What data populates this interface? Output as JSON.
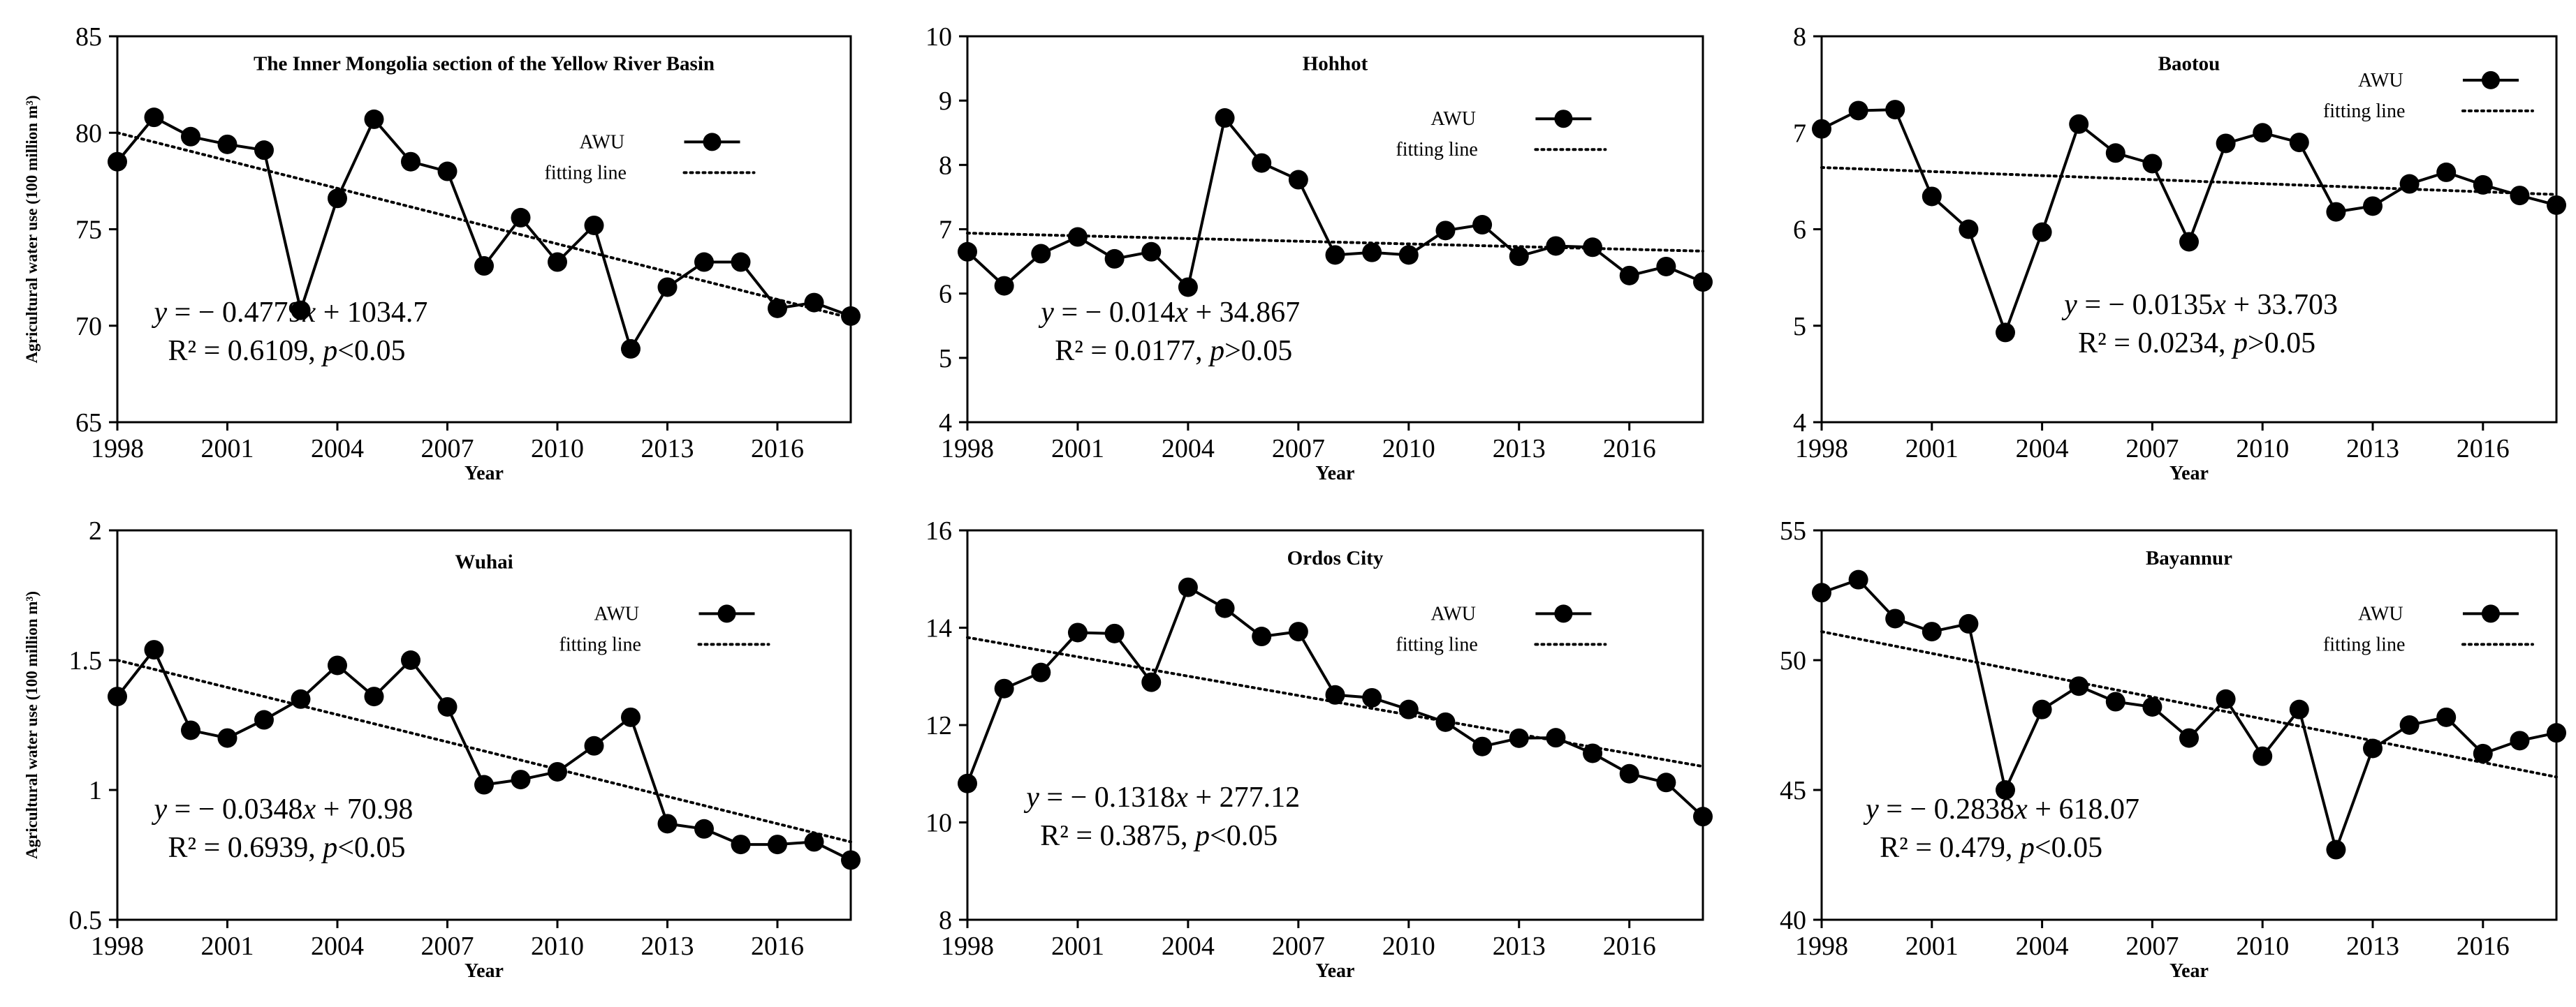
{
  "chart_data": [
    {
      "type": "line",
      "title": "The Inner Mongolia section of the Yellow River Basin",
      "xlabel": "Year",
      "ylabel": "Agricultural water use (100 million m³)",
      "xlim": [
        1998,
        2018
      ],
      "ylim": [
        65,
        85
      ],
      "xticks": [
        "1998",
        "2001",
        "2004",
        "2007",
        "2010",
        "2013",
        "2016"
      ],
      "yticks": [
        "65",
        "70",
        "75",
        "80",
        "85"
      ],
      "legend": {
        "series_label": "AWU",
        "fit_label": "fitting line"
      },
      "series": [
        {
          "name": "AWU",
          "x": [
            1998,
            1999,
            2000,
            2001,
            2002,
            2003,
            2004,
            2005,
            2006,
            2007,
            2008,
            2009,
            2010,
            2011,
            2012,
            2013,
            2014,
            2015,
            2016,
            2017,
            2018
          ],
          "values": [
            78.5,
            80.8,
            79.8,
            79.4,
            79.1,
            70.8,
            76.6,
            80.7,
            78.5,
            78.0,
            73.1,
            75.6,
            73.3,
            75.2,
            68.8,
            72.0,
            73.3,
            73.3,
            70.9,
            71.2,
            70.5
          ]
        }
      ],
      "fit": {
        "start": [
          1998,
          80.0
        ],
        "end": [
          2018,
          70.4
        ]
      },
      "equation": {
        "y_var": "y",
        "y_rest": " = − 0.4779",
        "x_var": "x",
        "x_rest": " + 1034.7",
        "r2_part": "R² = 0.6109, ",
        "p_var": "p",
        "p_rest": "<0.05"
      }
    },
    {
      "type": "line",
      "title": "Hohhot",
      "xlabel": "Year",
      "xlim": [
        1998,
        2018
      ],
      "ylim": [
        4,
        10
      ],
      "xticks": [
        "1998",
        "2001",
        "2004",
        "2007",
        "2010",
        "2013",
        "2016"
      ],
      "yticks": [
        "4",
        "5",
        "6",
        "7",
        "8",
        "9",
        "10"
      ],
      "legend": {
        "series_label": "AWU",
        "fit_label": "fitting line"
      },
      "series": [
        {
          "name": "AWU",
          "x": [
            1998,
            1999,
            2000,
            2001,
            2002,
            2003,
            2004,
            2005,
            2006,
            2007,
            2008,
            2009,
            2010,
            2011,
            2012,
            2013,
            2014,
            2015,
            2016,
            2017,
            2018
          ],
          "values": [
            6.65,
            6.12,
            6.62,
            6.88,
            6.54,
            6.65,
            6.1,
            8.73,
            8.03,
            7.77,
            6.6,
            6.64,
            6.6,
            6.98,
            7.07,
            6.58,
            6.74,
            6.72,
            6.28,
            6.42,
            6.18
          ]
        }
      ],
      "fit": {
        "start": [
          1998,
          6.94
        ],
        "end": [
          2018,
          6.66
        ]
      },
      "equation": {
        "y_var": "y",
        "y_rest": " = − 0.014",
        "x_var": "x",
        "x_rest": " + 34.867",
        "r2_part": "R² = 0.0177, ",
        "p_var": "p",
        "p_rest": ">0.05"
      }
    },
    {
      "type": "line",
      "title": "Baotou",
      "xlabel": "Year",
      "xlim": [
        1998,
        2018
      ],
      "ylim": [
        4,
        8
      ],
      "xticks": [
        "1998",
        "2001",
        "2004",
        "2007",
        "2010",
        "2013",
        "2016"
      ],
      "yticks": [
        "4",
        "5",
        "6",
        "7",
        "8"
      ],
      "legend": {
        "series_label": "AWU",
        "fit_label": "fitting line"
      },
      "series": [
        {
          "name": "AWU",
          "x": [
            1998,
            1999,
            2000,
            2001,
            2002,
            2003,
            2004,
            2005,
            2006,
            2007,
            2008,
            2009,
            2010,
            2011,
            2012,
            2013,
            2014,
            2015,
            2016,
            2017,
            2018
          ],
          "values": [
            7.04,
            7.23,
            7.24,
            6.34,
            6.0,
            4.93,
            5.97,
            7.09,
            6.79,
            6.68,
            5.87,
            6.89,
            7.0,
            6.9,
            6.18,
            6.24,
            6.47,
            6.59,
            6.46,
            6.35,
            6.25
          ]
        }
      ],
      "fit": {
        "start": [
          1998,
          6.64
        ],
        "end": [
          2018,
          6.36
        ]
      },
      "equation": {
        "y_var": "y",
        "y_rest": " = − 0.0135",
        "x_var": "x",
        "x_rest": " + 33.703",
        "r2_part": "R² = 0.0234, ",
        "p_var": "p",
        "p_rest": ">0.05"
      }
    },
    {
      "type": "line",
      "title": "Wuhai",
      "xlabel": "Year",
      "ylabel": "Agricultural water use (100 million m³)",
      "xlim": [
        1998,
        2018
      ],
      "ylim": [
        0.5,
        2
      ],
      "xticks": [
        "1998",
        "2001",
        "2004",
        "2007",
        "2010",
        "2013",
        "2016"
      ],
      "yticks": [
        "0.5",
        "1",
        "1.5",
        "2"
      ],
      "legend": {
        "series_label": "AWU",
        "fit_label": "fitting line"
      },
      "series": [
        {
          "name": "AWU",
          "x": [
            1998,
            1999,
            2000,
            2001,
            2002,
            2003,
            2004,
            2005,
            2006,
            2007,
            2008,
            2009,
            2010,
            2011,
            2012,
            2013,
            2014,
            2015,
            2016,
            2017,
            2018
          ],
          "values": [
            1.36,
            1.54,
            1.23,
            1.2,
            1.27,
            1.35,
            1.48,
            1.36,
            1.5,
            1.32,
            1.02,
            1.04,
            1.07,
            1.17,
            1.28,
            0.87,
            0.85,
            0.79,
            0.79,
            0.8,
            0.73
          ]
        }
      ],
      "fit": {
        "start": [
          1998,
          1.5
        ],
        "end": [
          2018,
          0.8
        ]
      },
      "equation": {
        "y_var": "y",
        "y_rest": " = − 0.0348",
        "x_var": "x",
        "x_rest": " + 70.98",
        "r2_part": "R² = 0.6939, ",
        "p_var": "p",
        "p_rest": "<0.05"
      }
    },
    {
      "type": "line",
      "title": "Ordos City",
      "xlabel": "Year",
      "xlim": [
        1998,
        2018
      ],
      "ylim": [
        8,
        16
      ],
      "xticks": [
        "1998",
        "2001",
        "2004",
        "2007",
        "2010",
        "2013",
        "2016"
      ],
      "yticks": [
        "8",
        "10",
        "12",
        "14",
        "16"
      ],
      "legend": {
        "series_label": "AWU",
        "fit_label": "fitting line"
      },
      "series": [
        {
          "name": "AWU",
          "x": [
            1998,
            1999,
            2000,
            2001,
            2002,
            2003,
            2004,
            2005,
            2006,
            2007,
            2008,
            2009,
            2010,
            2011,
            2012,
            2013,
            2014,
            2015,
            2016,
            2017,
            2018
          ],
          "values": [
            10.8,
            12.75,
            13.08,
            13.9,
            13.88,
            12.88,
            14.83,
            14.4,
            13.82,
            13.92,
            12.62,
            12.56,
            12.32,
            12.06,
            11.56,
            11.73,
            11.74,
            11.42,
            11.0,
            10.82,
            10.12
          ]
        }
      ],
      "fit": {
        "start": [
          1998,
          13.8
        ],
        "end": [
          2018,
          11.15
        ]
      },
      "equation": {
        "y_var": "y",
        "y_rest": " = − 0.1318",
        "x_var": "x",
        "x_rest": " + 277.12",
        "r2_part": "R² = 0.3875, ",
        "p_var": "p",
        "p_rest": "<0.05"
      }
    },
    {
      "type": "line",
      "title": "Bayannur",
      "xlabel": "Year",
      "xlim": [
        1998,
        2018
      ],
      "ylim": [
        40,
        55
      ],
      "xticks": [
        "1998",
        "2001",
        "2004",
        "2007",
        "2010",
        "2013",
        "2016"
      ],
      "yticks": [
        "40",
        "45",
        "50",
        "55"
      ],
      "legend": {
        "series_label": "AWU",
        "fit_label": "fitting line"
      },
      "series": [
        {
          "name": "AWU",
          "x": [
            1998,
            1999,
            2000,
            2001,
            2002,
            2003,
            2004,
            2005,
            2006,
            2007,
            2008,
            2009,
            2010,
            2011,
            2012,
            2013,
            2014,
            2015,
            2016,
            2017,
            2018
          ],
          "values": [
            52.6,
            53.1,
            51.6,
            51.1,
            51.4,
            45.0,
            48.1,
            49.0,
            48.4,
            48.2,
            47.0,
            48.5,
            46.3,
            48.1,
            42.7,
            46.6,
            47.5,
            47.8,
            46.4,
            46.9,
            47.2
          ]
        }
      ],
      "fit": {
        "start": [
          1998,
          51.1
        ],
        "end": [
          2018,
          45.5
        ]
      },
      "equation": {
        "y_var": "y",
        "y_rest": " = − 0.2838",
        "x_var": "x",
        "x_rest": " + 618.07",
        "r2_part": "R² = 0.479, ",
        "p_var": "p",
        "p_rest": "<0.05"
      }
    }
  ]
}
